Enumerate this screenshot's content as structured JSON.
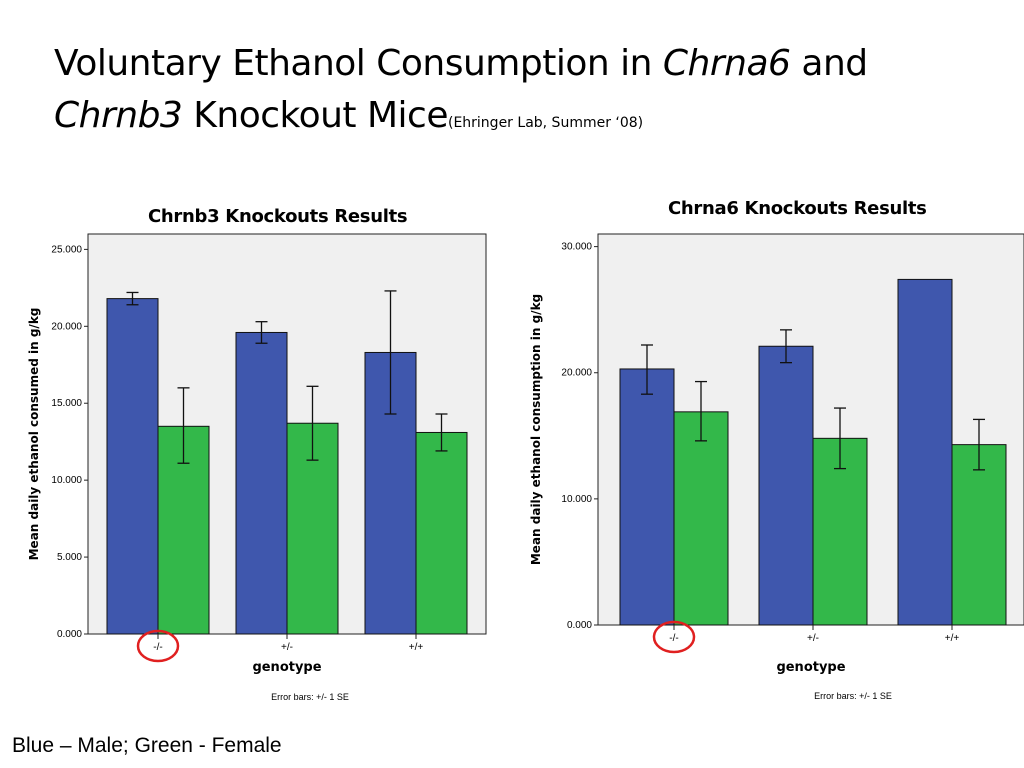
{
  "slide": {
    "title_part1": "Voluntary Ethanol Consumption in ",
    "title_gene1": "Chrna6",
    "title_part2": " and",
    "title_gene2": "Chrnb3",
    "title_part3": " Knockout Mice",
    "title_source": "(Ehringer Lab, Summer ‘08)",
    "footer": "Blue – Male; Green - Female"
  },
  "colors": {
    "male": "#3f57ad",
    "female": "#33b84a",
    "plot_bg": "#f0f0f0",
    "highlight": "#e02020"
  },
  "chart_data": [
    {
      "type": "bar",
      "title": "Chrnb3 Knockouts Results",
      "xlabel": "genotype",
      "ylabel": "Mean daily ethanol consumed in g/kg",
      "note": "Error bars: +/- 1 SE",
      "categories": [
        "-/-",
        "+/-",
        "+/+"
      ],
      "ylim": [
        0,
        26
      ],
      "yticks": [
        0,
        5,
        10,
        15,
        20,
        25
      ],
      "ytick_labels": [
        "0.000",
        "5.000",
        "10.000",
        "15.000",
        "20.000",
        "25.000"
      ],
      "highlight_category": "-/-",
      "series": [
        {
          "values": [
            21.8,
            19.6,
            18.3
          ],
          "error_low": [
            21.4,
            18.9,
            14.3
          ],
          "error_high": [
            22.2,
            20.3,
            22.3
          ]
        },
        {
          "values": [
            13.5,
            13.7,
            13.1
          ],
          "error_low": [
            11.1,
            11.3,
            11.9
          ],
          "error_high": [
            16.0,
            16.1,
            14.3
          ]
        }
      ]
    },
    {
      "type": "bar",
      "title": "Chrna6 Knockouts Results",
      "xlabel": "genotype",
      "ylabel": "Mean daily ethanol consumption in g/kg",
      "note": "Error bars: +/- 1 SE",
      "categories": [
        "-/-",
        "+/-",
        "+/+"
      ],
      "ylim": [
        0,
        31
      ],
      "yticks": [
        0,
        10,
        20,
        30
      ],
      "ytick_labels": [
        "0.000",
        "10.000",
        "20.000",
        "30.000"
      ],
      "highlight_category": "-/-",
      "series": [
        {
          "values": [
            20.3,
            22.1,
            27.4
          ],
          "error_low": [
            18.3,
            20.8,
            null
          ],
          "error_high": [
            22.2,
            23.4,
            null
          ]
        },
        {
          "values": [
            16.9,
            14.8,
            14.3
          ],
          "error_low": [
            14.6,
            12.4,
            12.3
          ],
          "error_high": [
            19.3,
            17.2,
            16.3
          ]
        }
      ]
    }
  ]
}
